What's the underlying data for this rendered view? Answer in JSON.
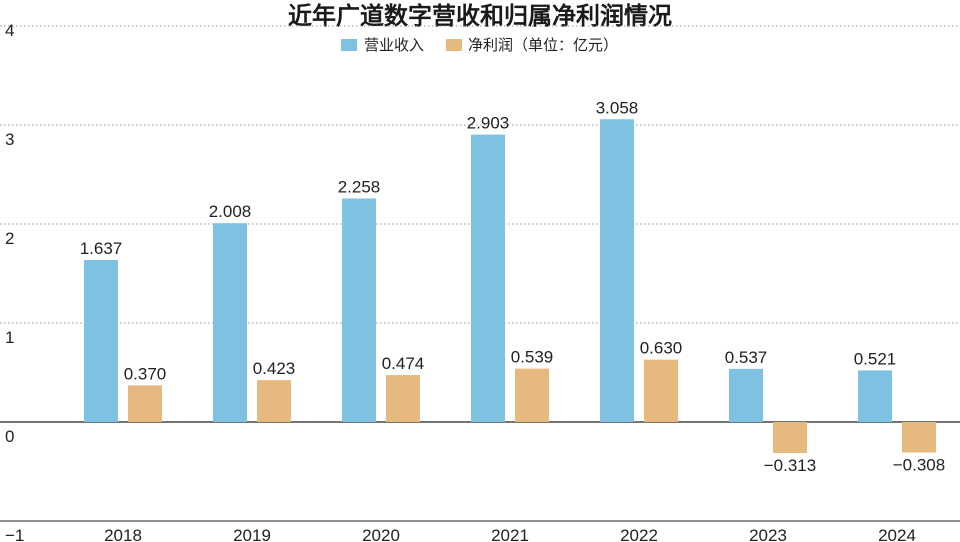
{
  "colors": {
    "revenue": "#7fc1e0",
    "profit": "#e6b97e"
  },
  "chart_data": {
    "type": "bar",
    "title": "近年广道数字营收和归属净利润情况",
    "categories": [
      "2018",
      "2019",
      "2020",
      "2021",
      "2022",
      "2023",
      "2024"
    ],
    "series": [
      {
        "name": "营业收入",
        "values": [
          1.637,
          2.008,
          2.258,
          2.903,
          3.058,
          0.537,
          0.521
        ],
        "labels": [
          "1.637",
          "2.008",
          "2.258",
          "2.903",
          "3.058",
          "0.537",
          "0.521"
        ]
      },
      {
        "name": "净利润（单位：亿元）",
        "values": [
          0.37,
          0.423,
          0.474,
          0.539,
          0.63,
          -0.313,
          -0.308
        ],
        "labels": [
          "0.370",
          "0.423",
          "0.474",
          "0.539",
          "0.630",
          "−0.313",
          "−0.308"
        ]
      }
    ],
    "ylim": [
      -1,
      4
    ],
    "yticks": [
      -1,
      0,
      1,
      2,
      3,
      4
    ],
    "ytick_labels": [
      "−1",
      "0",
      "1",
      "2",
      "3",
      "4"
    ],
    "grid": true,
    "legend": "top-center"
  }
}
